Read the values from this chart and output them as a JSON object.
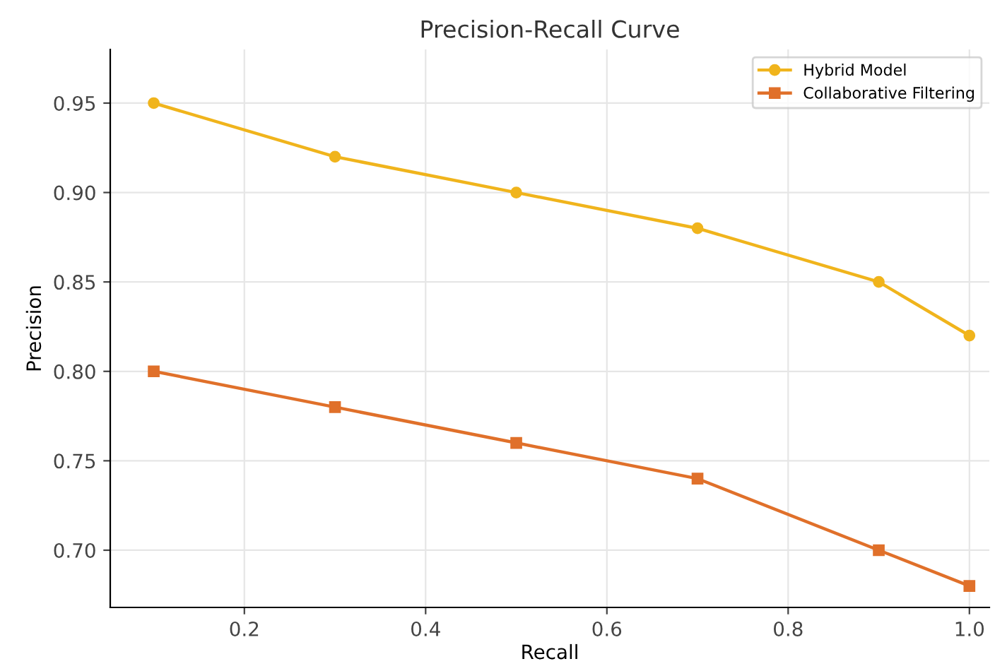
{
  "chart_data": {
    "type": "line",
    "title": "Precision-Recall Curve",
    "xlabel": "Recall",
    "ylabel": "Precision",
    "x": [
      0.1,
      0.3,
      0.5,
      0.7,
      0.9,
      1.0
    ],
    "series": [
      {
        "name": "Hybrid Model",
        "color": "#f0b41c",
        "marker": "circle",
        "values": [
          0.95,
          0.92,
          0.9,
          0.88,
          0.85,
          0.82
        ]
      },
      {
        "name": "Collaborative Filtering",
        "color": "#e0702a",
        "marker": "square",
        "values": [
          0.8,
          0.78,
          0.76,
          0.74,
          0.7,
          0.68
        ]
      }
    ],
    "xlim": [
      0.052,
      1.022
    ],
    "xticks": [
      {
        "value": 0.2,
        "label": "0.2"
      },
      {
        "value": 0.4,
        "label": "0.4"
      },
      {
        "value": 0.6,
        "label": "0.6"
      },
      {
        "value": 0.8,
        "label": "0.8"
      },
      {
        "value": 1.0,
        "label": "1.0"
      }
    ],
    "ylim": [
      0.668,
      0.98
    ],
    "yticks": [
      {
        "value": 0.7,
        "label": "0.70"
      },
      {
        "value": 0.75,
        "label": "0.75"
      },
      {
        "value": 0.8,
        "label": "0.80"
      },
      {
        "value": 0.85,
        "label": "0.85"
      },
      {
        "value": 0.9,
        "label": "0.90"
      },
      {
        "value": 0.95,
        "label": "0.95"
      }
    ],
    "grid": true,
    "legend": "top right",
    "line_style": "solid"
  }
}
